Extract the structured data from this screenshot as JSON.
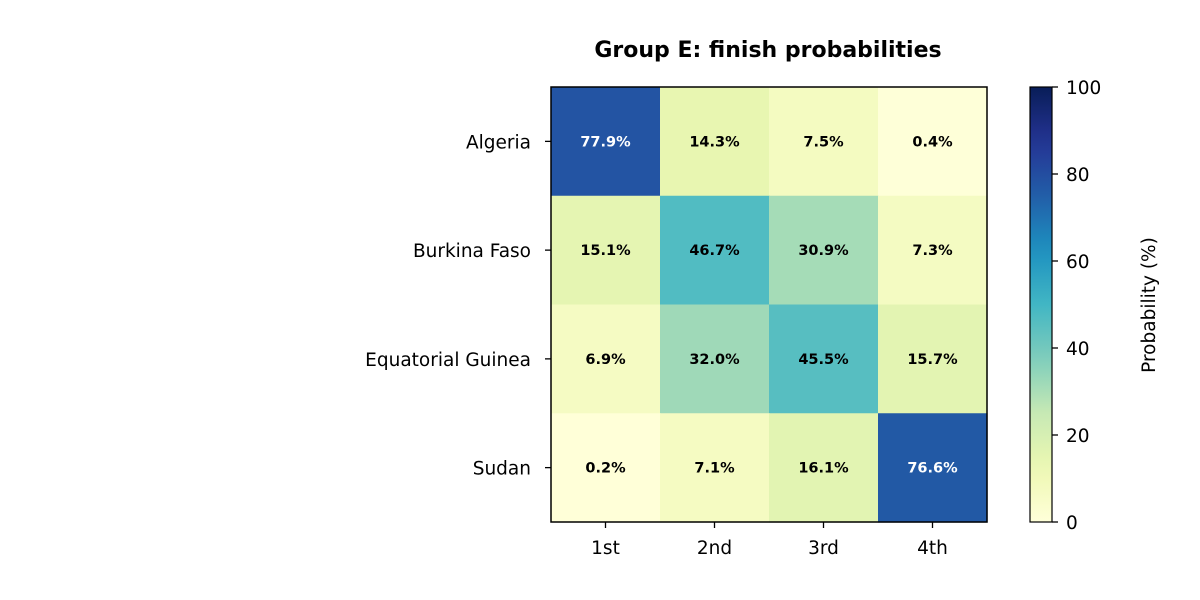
{
  "chart_data": {
    "type": "heatmap",
    "title": "Group E: finish probabilities",
    "rows": [
      "Algeria",
      "Burkina Faso",
      "Equatorial Guinea",
      "Sudan"
    ],
    "columns": [
      "1st",
      "2nd",
      "3rd",
      "4th"
    ],
    "values": [
      [
        77.9,
        14.3,
        7.5,
        0.4
      ],
      [
        15.1,
        46.7,
        30.9,
        7.3
      ],
      [
        6.9,
        32.0,
        45.5,
        15.7
      ],
      [
        0.2,
        7.1,
        16.1,
        76.6
      ]
    ],
    "cell_labels": [
      [
        "77.9%",
        "14.3%",
        "7.5%",
        "0.4%"
      ],
      [
        "15.1%",
        "46.7%",
        "30.9%",
        "7.3%"
      ],
      [
        "6.9%",
        "32.0%",
        "45.5%",
        "15.7%"
      ],
      [
        "0.2%",
        "7.1%",
        "16.1%",
        "76.6%"
      ]
    ],
    "colorbar": {
      "label": "Probability (%)",
      "range": [
        0,
        100
      ],
      "ticks": [
        "0",
        "20",
        "40",
        "60",
        "80",
        "100"
      ],
      "colormap": "YlGnBu"
    }
  }
}
